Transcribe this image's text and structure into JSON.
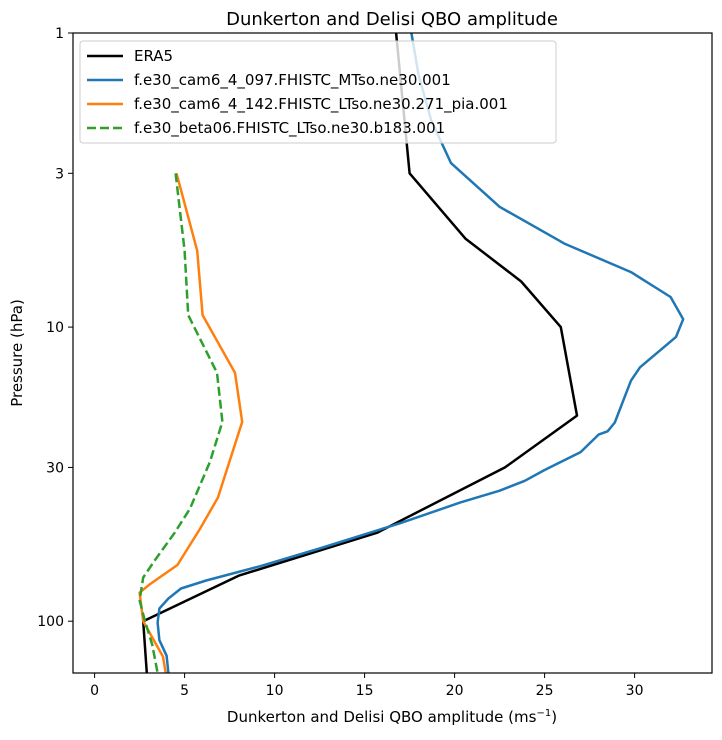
{
  "chart_data": {
    "type": "line",
    "title": "Dunkerton and Delisi QBO amplitude",
    "xlabel": "Dunkerton and Delisi QBO amplitude (ms",
    "xlabel_sup": "−1",
    "xlabel_close": ")",
    "ylabel": "Pressure (hPa)",
    "xlim": [
      -1.2,
      34.3
    ],
    "ylim": [
      150,
      1
    ],
    "yscale": "log",
    "y_inverted": true,
    "grid": false,
    "legend_position": "top-left",
    "xticks": [
      0,
      5,
      10,
      15,
      20,
      25,
      30
    ],
    "xtick_labels": [
      "0",
      "5",
      "10",
      "15",
      "20",
      "25",
      "30"
    ],
    "yticks": [
      1,
      3,
      10,
      30,
      100
    ],
    "ytick_labels": [
      "1",
      "3",
      "10",
      "30",
      "100"
    ],
    "series": [
      {
        "name": "ERA5",
        "color": "#000000",
        "dash": false,
        "x": [
          16.75,
          17.5,
          20.6,
          23.7,
          25.9,
          26.8,
          22.8,
          15.7,
          8.0,
          2.7,
          2.9
        ],
        "y": [
          1,
          3,
          5,
          7,
          10,
          20,
          30,
          50,
          70,
          100,
          150
        ]
      },
      {
        "name": "f.e30_cam6_4_097.FHISTC_MTso.ne30.001",
        "color": "#1f77b4",
        "dash": false,
        "x": [
          17.6,
          18.0,
          18.7,
          19.8,
          22.5,
          26.1,
          29.8,
          32.0,
          32.7,
          32.3,
          30.3,
          29.8,
          28.9,
          28.5,
          28.0,
          27.0,
          25.0,
          23.9,
          22.5,
          20.3,
          17.0,
          12.5,
          9.2,
          6.2,
          4.8,
          4.1,
          3.6,
          3.5,
          3.6,
          4.0,
          4.1
        ],
        "y": [
          1,
          1.39,
          1.98,
          2.77,
          3.9,
          5.2,
          6.5,
          7.9,
          9.4,
          10.8,
          13.7,
          15.2,
          21.1,
          22.6,
          23.2,
          26.6,
          30.6,
          33.3,
          36,
          39.5,
          46.4,
          56.6,
          65,
          72.7,
          77.4,
          83.7,
          90.5,
          101,
          116,
          131,
          150
        ]
      },
      {
        "name": "f.e30_cam6_4_142.FHISTC_LTso.ne30.271_pia.001",
        "color": "#ff7f0e",
        "dash": false,
        "x": [
          4.55,
          5.7,
          6.0,
          7.8,
          8.2,
          6.85,
          5.85,
          4.6,
          3.05,
          2.5,
          2.7,
          3.8,
          3.95
        ],
        "y": [
          3,
          5.5,
          9.1,
          14.3,
          21,
          38,
          48.6,
          64.4,
          75,
          80,
          100,
          132,
          150
        ]
      },
      {
        "name": "f.e30_beta06.FHISTC_LTso.ne30.b183.001",
        "color": "#2ca02c",
        "dash": true,
        "x": [
          4.5,
          5.0,
          5.2,
          6.8,
          7.1,
          6.4,
          5.3,
          4.45,
          3.35,
          2.7,
          2.5,
          2.8,
          3.2,
          3.5
        ],
        "y": [
          3,
          5.5,
          9.1,
          14.3,
          21,
          28.8,
          41.4,
          50,
          62,
          71,
          84.9,
          100,
          120,
          150
        ]
      }
    ]
  }
}
